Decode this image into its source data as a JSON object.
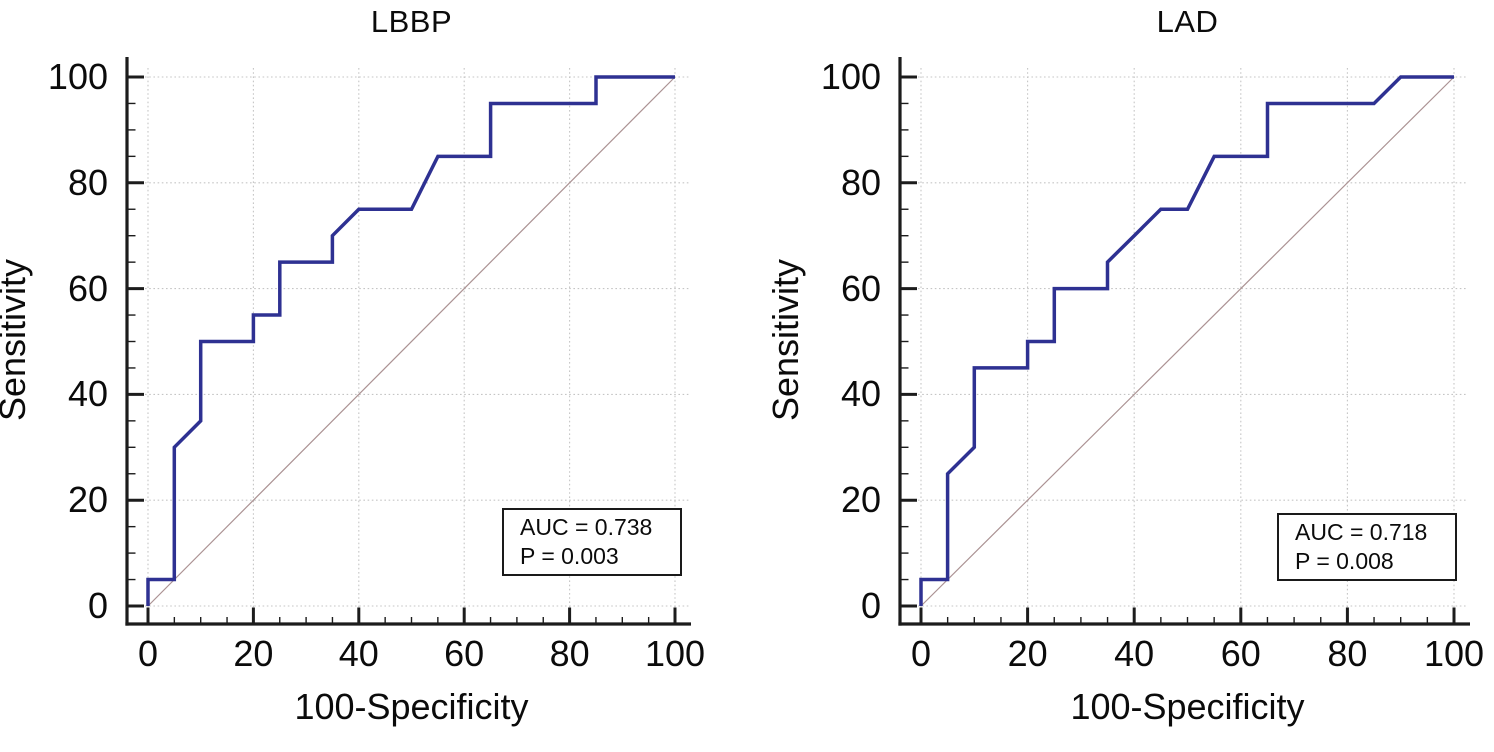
{
  "figure": {
    "background": "#ffffff"
  },
  "colors": {
    "axis": "#1c1c1c",
    "grid": "#c5c5c5",
    "text": "#0b0b0b",
    "annotation_border": "#1a1a1a"
  },
  "chart_data": [
    {
      "type": "line",
      "subtype": "roc-curve",
      "title": "LBBP",
      "xlabel": "100-Specificity",
      "ylabel": "Sensitivity",
      "xlim": [
        0,
        100
      ],
      "ylim": [
        0,
        100
      ],
      "x_ticks": [
        0,
        20,
        40,
        60,
        80,
        100
      ],
      "y_ticks": [
        0,
        20,
        40,
        60,
        80,
        100
      ],
      "minor_tick_step": 5,
      "grid": "dotted-major",
      "legend_position": "none",
      "annotation": {
        "auc_label": "AUC = 0.738",
        "p_label": "P = 0.003"
      },
      "series": [
        {
          "name": "ROC curve",
          "color": "#2e3192",
          "width": 3.5,
          "points": [
            [
              0,
              0
            ],
            [
              0,
              5
            ],
            [
              5,
              5
            ],
            [
              5,
              30
            ],
            [
              10,
              35
            ],
            [
              10,
              50
            ],
            [
              20,
              50
            ],
            [
              20,
              55
            ],
            [
              25,
              55
            ],
            [
              25,
              65
            ],
            [
              35,
              65
            ],
            [
              35,
              70
            ],
            [
              40,
              75
            ],
            [
              50,
              75
            ],
            [
              55,
              85
            ],
            [
              65,
              85
            ],
            [
              65,
              95
            ],
            [
              85,
              95
            ],
            [
              85,
              100
            ],
            [
              100,
              100
            ]
          ]
        },
        {
          "name": "chance diagonal",
          "color": "#ab9293",
          "width": 1.2,
          "points": [
            [
              0,
              0
            ],
            [
              100,
              100
            ]
          ]
        }
      ]
    },
    {
      "type": "line",
      "subtype": "roc-curve",
      "title": "LAD",
      "xlabel": "100-Specificity",
      "ylabel": "Sensitivity",
      "xlim": [
        0,
        100
      ],
      "ylim": [
        0,
        100
      ],
      "x_ticks": [
        0,
        20,
        40,
        60,
        80,
        100
      ],
      "y_ticks": [
        0,
        20,
        40,
        60,
        80,
        100
      ],
      "minor_tick_step": 5,
      "grid": "dotted-major",
      "legend_position": "none",
      "annotation": {
        "auc_label": "AUC = 0.718",
        "p_label": "P = 0.008"
      },
      "series": [
        {
          "name": "ROC curve",
          "color": "#2e3192",
          "width": 3.5,
          "points": [
            [
              0,
              0
            ],
            [
              0,
              5
            ],
            [
              5,
              5
            ],
            [
              5,
              25
            ],
            [
              10,
              30
            ],
            [
              10,
              45
            ],
            [
              20,
              45
            ],
            [
              20,
              50
            ],
            [
              25,
              50
            ],
            [
              25,
              60
            ],
            [
              35,
              60
            ],
            [
              35,
              65
            ],
            [
              40,
              70
            ],
            [
              45,
              75
            ],
            [
              50,
              75
            ],
            [
              55,
              85
            ],
            [
              65,
              85
            ],
            [
              65,
              95
            ],
            [
              85,
              95
            ],
            [
              90,
              100
            ],
            [
              100,
              100
            ]
          ]
        },
        {
          "name": "chance diagonal",
          "color": "#ab9293",
          "width": 1.2,
          "points": [
            [
              0,
              0
            ],
            [
              100,
              100
            ]
          ]
        }
      ]
    }
  ]
}
